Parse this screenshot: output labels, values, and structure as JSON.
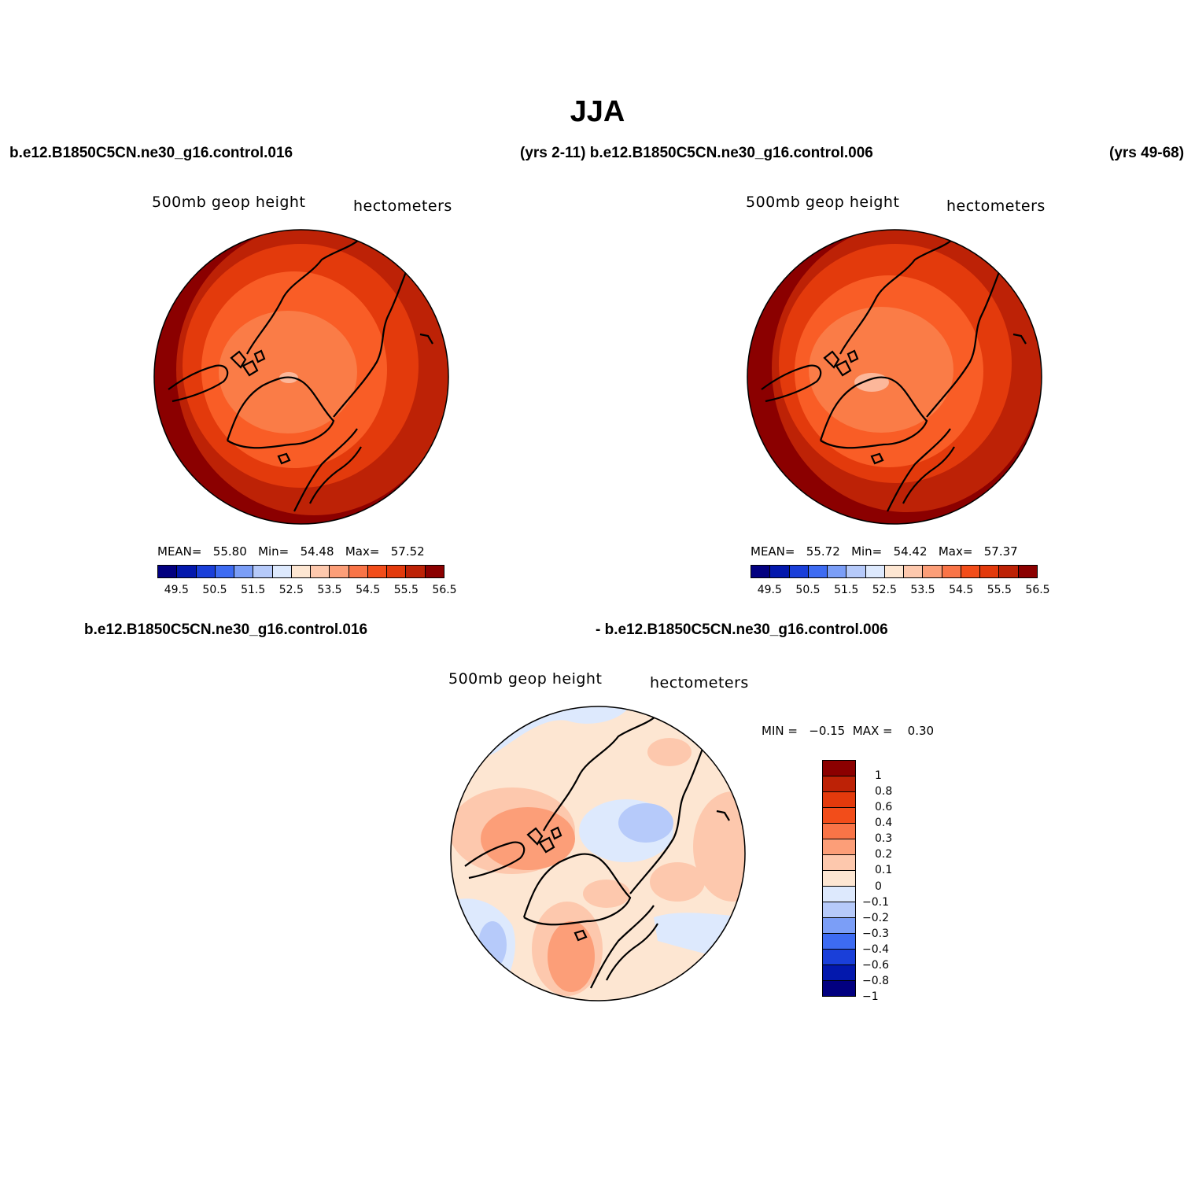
{
  "title": "JJA",
  "header": {
    "case_a": "b.e12.B1850C5CN.ne30_g16.control.016",
    "years_a_and_case_b": "(yrs 2-11) b.e12.B1850C5CN.ne30_g16.control.006",
    "years_b": "(yrs 49-68)"
  },
  "panel_a": {
    "left_title": "500mb  geop  height",
    "right_title": "hectometers",
    "stats": {
      "mean_label": "MEAN=",
      "mean": "55.80",
      "min_label": "Min=",
      "min": "54.48",
      "max_label": "Max=",
      "max": "57.52"
    }
  },
  "panel_b": {
    "left_title": "500mb  geop  height",
    "right_title": "hectometers",
    "stats": {
      "mean_label": "MEAN=",
      "mean": "55.72",
      "min_label": "Min=",
      "min": "54.42",
      "max_label": "Max=",
      "max": "57.37"
    }
  },
  "diff_header": {
    "left": "b.e12.B1850C5CN.ne30_g16.control.016",
    "right": "- b.e12.B1850C5CN.ne30_g16.control.006"
  },
  "panel_diff": {
    "left_title": "500mb  geop  height",
    "right_title": "hectometers",
    "minmax": {
      "min_label": "MIN =",
      "min": "−0.15",
      "max_label": "MAX =",
      "max": "0.30"
    }
  },
  "abs_colorbar": {
    "ticks": [
      "49.5",
      "50.5",
      "51.5",
      "52.5",
      "53.5",
      "54.5",
      "55.5",
      "56.5"
    ],
    "colors": [
      "#020080",
      "#0318ad",
      "#1a3fd9",
      "#3d6bf2",
      "#7b9ef7",
      "#b6cafa",
      "#dde9fd",
      "#fde6d2",
      "#fdc8ad",
      "#fc9e78",
      "#f97447",
      "#f24d1a",
      "#e33a0c",
      "#bd2206",
      "#8b0000"
    ]
  },
  "diff_colorbar": {
    "ticks": [
      "1",
      "0.8",
      "0.6",
      "0.4",
      "0.3",
      "0.2",
      "0.1",
      "0",
      "−0.1",
      "−0.2",
      "−0.3",
      "−0.4",
      "−0.6",
      "−0.8",
      "−1"
    ],
    "colors": [
      "#8b0000",
      "#bd2206",
      "#e33a0c",
      "#f24d1a",
      "#f97447",
      "#fc9e78",
      "#fdc8ad",
      "#fde6d2",
      "#dde9fd",
      "#b6cafa",
      "#7b9ef7",
      "#3d6bf2",
      "#1a3fd9",
      "#0318ad",
      "#020080"
    ]
  },
  "map_colors": {
    "abs_outer": "#8b0000",
    "abs_ring1": "#bd2206",
    "abs_ring2": "#e33a0c",
    "abs_ring3": "#f95d26",
    "abs_inner": "#fa7c47",
    "abs_core": "#fcb79a",
    "diff_base": "#fde6d2",
    "diff_pos1": "#fdc8ad",
    "diff_pos2": "#fc9e78",
    "diff_neg1": "#dde9fd",
    "diff_neg2": "#b6cafa"
  }
}
